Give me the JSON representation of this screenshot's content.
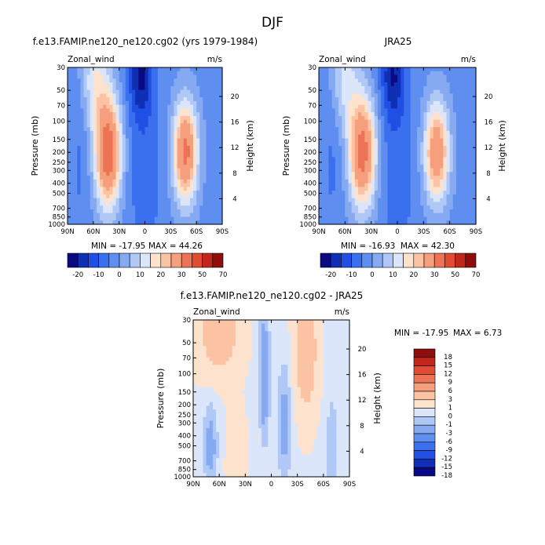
{
  "figure": {
    "title": "DJF"
  },
  "palettes": {
    "full": [
      "#0a0a82",
      "#0f2fb4",
      "#1f4fe3",
      "#3a6fee",
      "#5e8ef0",
      "#86aaf2",
      "#b0c8f6",
      "#dbe6fb",
      "#fde3ce",
      "#fbc3a4",
      "#f59f7c",
      "#ec7355",
      "#e04c31",
      "#c0271a",
      "#8e0e0e"
    ],
    "diff": [
      "#0a0a82",
      "#0f2fb4",
      "#1f4fe3",
      "#3a6fee",
      "#5e8ef0",
      "#86aaf2",
      "#b0c8f6",
      "#dbe6fb",
      "#fde3ce",
      "#fbc3a4",
      "#f59f7c",
      "#ec7355",
      "#e04c31",
      "#c0271a",
      "#8e0e0e"
    ]
  },
  "chart_data": [
    {
      "type": "heatmap",
      "title": "f.e13.FAMIP.ne120_ne120.cg02 (yrs 1979-1984)",
      "field_label": "Zonal_wind",
      "units": "m/s",
      "xlabel": "",
      "ylabel": "Pressure (mb)",
      "ylabel_right": "Height (km)",
      "x_ticks": [
        "90N",
        "60N",
        "30N",
        "0",
        "30S",
        "60S",
        "90S"
      ],
      "x_range": [
        90,
        -90
      ],
      "y_ticks": [
        "30",
        "50",
        "70",
        "100",
        "150",
        "200",
        "250",
        "300",
        "400",
        "500",
        "700",
        "850",
        "1000"
      ],
      "y_range_mb": [
        30,
        1000
      ],
      "height_ticks": [
        "4",
        "8",
        "12",
        "16",
        "20"
      ],
      "stats": {
        "min_label": "MIN = -17.95",
        "max_label": "MAX =   44.26",
        "min": -17.95,
        "max": 44.26
      },
      "levels": [
        -20,
        -15,
        -10,
        -5,
        0,
        5,
        10,
        15,
        20,
        25,
        30,
        40,
        50,
        60,
        70
      ],
      "level_labels": [
        "-20",
        "-10",
        "0",
        "10",
        "20",
        "30",
        "50",
        "70"
      ],
      "field": {
        "base": [
          {
            "lat": 43,
            "p": 200,
            "amp": 44,
            "wlat": 15,
            "wz": 1.2
          },
          {
            "lat": -47,
            "p": 200,
            "amp": 40,
            "wlat": 14,
            "wz": 1.1
          },
          {
            "lat": 58,
            "p": 40,
            "amp": 16,
            "wlat": 16,
            "wz": 1.1
          },
          {
            "lat": 5,
            "p": 35,
            "amp": -18,
            "wlat": 14,
            "wz": 1.0
          },
          {
            "lat": 0,
            "p": 300,
            "amp": -6,
            "wlat": 20,
            "wz": 2.0
          },
          {
            "lat": 75,
            "p": 200,
            "amp": -4,
            "wlat": 12,
            "wz": 2.0
          }
        ],
        "background": 3
      }
    },
    {
      "type": "heatmap",
      "title": "JRA25",
      "field_label": "Zonal_wind",
      "units": "m/s",
      "xlabel": "",
      "ylabel": "Pressure (mb)",
      "ylabel_right": "Height (km)",
      "x_ticks": [
        "90N",
        "60N",
        "30N",
        "0",
        "30S",
        "60S",
        "90S"
      ],
      "x_range": [
        90,
        -90
      ],
      "y_ticks": [
        "30",
        "50",
        "70",
        "100",
        "150",
        "200",
        "250",
        "300",
        "400",
        "500",
        "700",
        "850",
        "1000"
      ],
      "y_range_mb": [
        30,
        1000
      ],
      "height_ticks": [
        "4",
        "8",
        "12",
        "16",
        "20"
      ],
      "stats": {
        "min_label": "MIN = -16.93",
        "max_label": "MAX =   42.30",
        "min": -16.93,
        "max": 42.3
      },
      "levels": [
        -20,
        -15,
        -10,
        -5,
        0,
        5,
        10,
        15,
        20,
        25,
        30,
        40,
        50,
        60,
        70
      ],
      "level_labels": [
        "-20",
        "-10",
        "0",
        "10",
        "20",
        "30",
        "50",
        "70"
      ],
      "field": {
        "base": [
          {
            "lat": 40,
            "p": 200,
            "amp": 42,
            "wlat": 15,
            "wz": 1.2
          },
          {
            "lat": -45,
            "p": 200,
            "amp": 35,
            "wlat": 14,
            "wz": 1.1
          },
          {
            "lat": 60,
            "p": 40,
            "amp": 14,
            "wlat": 16,
            "wz": 1.1
          },
          {
            "lat": 5,
            "p": 35,
            "amp": -17,
            "wlat": 14,
            "wz": 1.0
          },
          {
            "lat": 0,
            "p": 300,
            "amp": -6,
            "wlat": 20,
            "wz": 2.0
          },
          {
            "lat": 75,
            "p": 200,
            "amp": -4,
            "wlat": 12,
            "wz": 2.0
          }
        ],
        "background": 3
      }
    },
    {
      "type": "heatmap",
      "title": "f.e13.FAMIP.ne120_ne120.cg02 - JRA25",
      "field_label": "Zonal_wind",
      "units": "m/s",
      "xlabel": "",
      "ylabel": "Pressure (mb)",
      "ylabel_right": "Height (km)",
      "x_ticks": [
        "90N",
        "60N",
        "30N",
        "0",
        "30S",
        "60S",
        "90S"
      ],
      "x_range": [
        90,
        -90
      ],
      "y_ticks": [
        "30",
        "50",
        "70",
        "100",
        "150",
        "200",
        "250",
        "300",
        "400",
        "500",
        "700",
        "850",
        "1000"
      ],
      "y_range_mb": [
        30,
        1000
      ],
      "height_ticks": [
        "4",
        "8",
        "12",
        "16",
        "20"
      ],
      "stats": {
        "min_label": "MIN = -17.95",
        "max_label": "MAX =    6.73",
        "min": -17.95,
        "max": 6.73
      },
      "levels": [
        -18,
        -15,
        -12,
        -9,
        -6,
        -3,
        -1,
        0,
        1,
        3,
        6,
        9,
        12,
        15,
        18
      ],
      "level_labels": [
        "18",
        "15",
        "12",
        "9",
        "6",
        "3",
        "1",
        "0",
        "-1",
        "-3",
        "-6",
        "-9",
        "-12",
        "-15",
        "-18"
      ],
      "field": {
        "base": [
          {
            "lat": 60,
            "p": 40,
            "amp": 4.5,
            "wlat": 22,
            "wz": 0.9
          },
          {
            "lat": -40,
            "p": 60,
            "amp": 5.0,
            "wlat": 12,
            "wz": 1.3
          },
          {
            "lat": 8,
            "p": 100,
            "amp": -3.5,
            "wlat": 6,
            "wz": 1.4
          },
          {
            "lat": -15,
            "p": 300,
            "amp": -2.5,
            "wlat": 8,
            "wz": 1.3
          },
          {
            "lat": 70,
            "p": 500,
            "amp": -2.5,
            "wlat": 8,
            "wz": 1.0
          },
          {
            "lat": 40,
            "p": 700,
            "amp": 2.0,
            "wlat": 10,
            "wz": 1.0
          },
          {
            "lat": -70,
            "p": 500,
            "amp": -1.5,
            "wlat": 8,
            "wz": 1.2
          }
        ],
        "background": 0.8
      }
    }
  ]
}
